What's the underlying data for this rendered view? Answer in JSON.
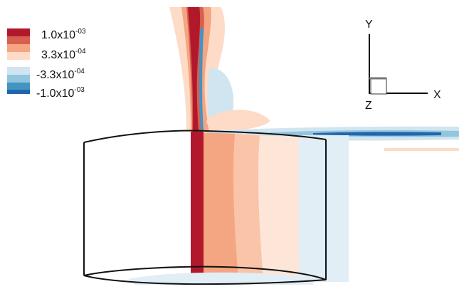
{
  "legend": {
    "entries": [
      {
        "mantissa": "1.0x10",
        "exponent": "-03"
      },
      {
        "mantissa": "3.3x10",
        "exponent": "-04"
      },
      {
        "mantissa": "-3.3x10",
        "exponent": "-04"
      },
      {
        "mantissa": "-1.0x10",
        "exponent": "-03"
      }
    ],
    "colors": [
      "#b2182b",
      "#d6604d",
      "#f4a582",
      "#fddbc7",
      "#ffffff",
      "#d1e5f0",
      "#92c5de",
      "#4393c3",
      "#2166ac"
    ]
  },
  "axes_triad": {
    "x_label": "X",
    "y_label": "Y",
    "z_label": "Z"
  }
}
